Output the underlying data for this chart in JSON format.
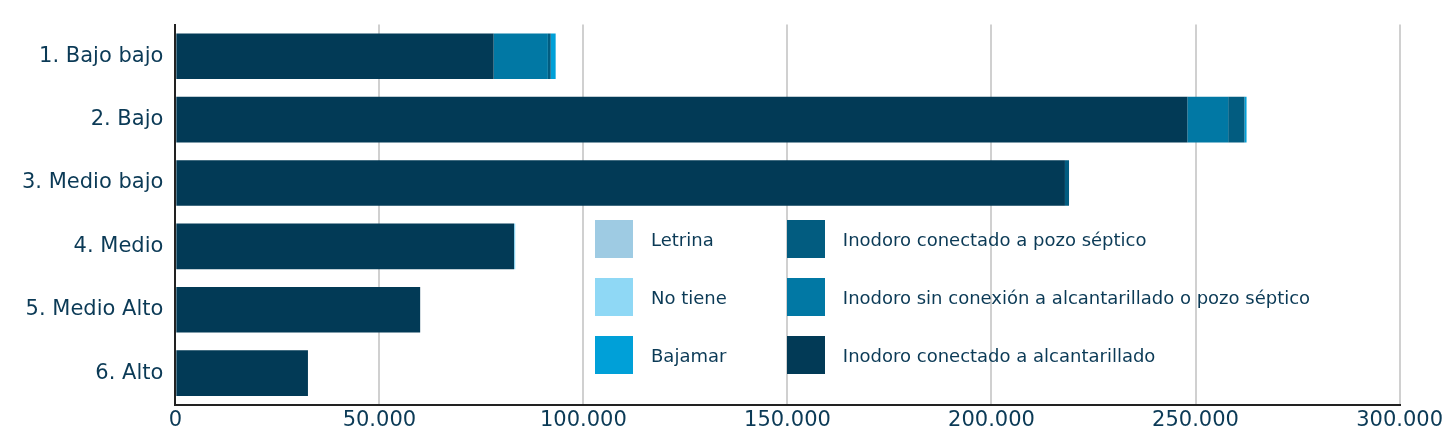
{
  "chart_data": {
    "type": "bar",
    "orientation": "horizontal",
    "stacked": true,
    "categories": [
      "1. Bajo bajo",
      "2. Bajo",
      "3. Medio bajo",
      "4. Medio",
      "5. Medio Alto",
      "6. Alto"
    ],
    "series": [
      {
        "name": "Inodoro conectado a alcantarillado",
        "color": "#023a56",
        "values": [
          78000,
          248000,
          218000,
          83000,
          60000,
          32500
        ]
      },
      {
        "name": "Inodoro sin conexión a alcantarillado o pozo séptico",
        "color": "#0178a4",
        "values": [
          13300,
          10000,
          null,
          null,
          null,
          null
        ]
      },
      {
        "name": "Inodoro conectado a pozo séptico",
        "color": "#025c80",
        "values": [
          700,
          4000,
          1000,
          null,
          null,
          null
        ]
      },
      {
        "name": "Bajamar",
        "color": "#00a0d8",
        "values": [
          1200,
          500,
          null,
          null,
          null,
          null
        ]
      },
      {
        "name": "No tiene",
        "color": "#8fd8f5",
        "values": [
          null,
          null,
          null,
          300,
          null,
          null
        ]
      },
      {
        "name": "Letrina",
        "color": "#9ecbe3",
        "values": [
          null,
          null,
          null,
          null,
          null,
          null
        ]
      }
    ],
    "xlim": [
      0,
      300000
    ],
    "xticks": [
      0,
      {
        "value": 50000,
        "label": "50.000"
      },
      {
        "value": 100000,
        "label": "100.000"
      },
      {
        "value": 150000,
        "label": "150.000"
      },
      {
        "value": 200000,
        "label": "200.000"
      },
      {
        "value": 250000,
        "label": "250.000"
      },
      {
        "value": 300000,
        "label": "300.000"
      }
    ],
    "grid": "x",
    "legend": "bottom"
  }
}
